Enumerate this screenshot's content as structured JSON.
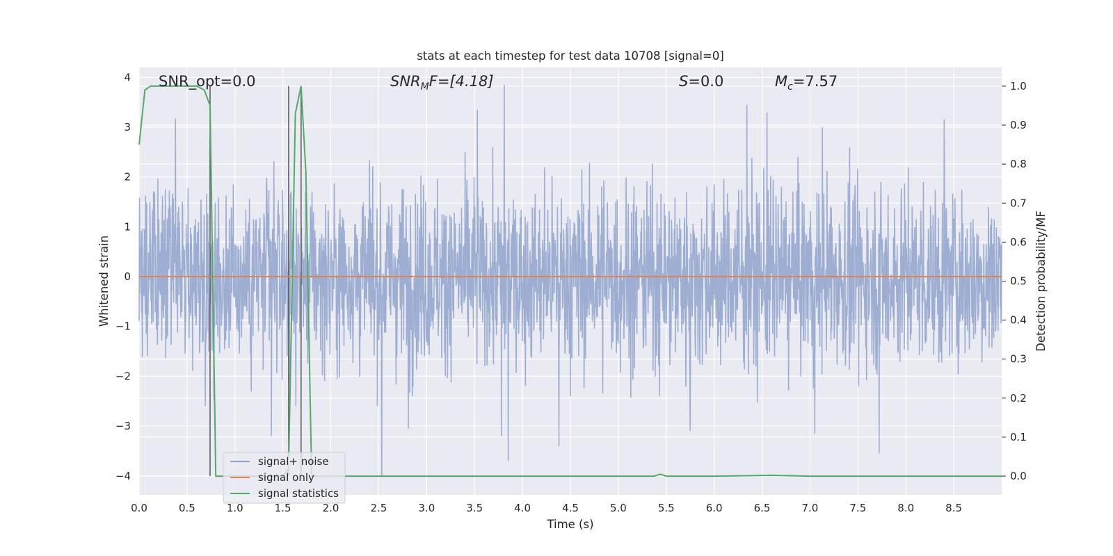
{
  "chart_data": {
    "type": "line",
    "title": "stats at each timestep for test data 10708 [signal=0]",
    "xlabel": "Time (s)",
    "ylabel": "Whitened strain",
    "ylabel_right": "Detection probability/MF",
    "xlim": [
      0.0,
      9.0
    ],
    "ylim": [
      -4.38,
      4.2
    ],
    "ylim_right": [
      -0.048,
      1.048
    ],
    "xticks": [
      "0.0",
      "0.5",
      "1.0",
      "1.5",
      "2.0",
      "2.5",
      "3.0",
      "3.5",
      "4.0",
      "4.5",
      "5.0",
      "5.5",
      "6.0",
      "6.5",
      "7.0",
      "7.5",
      "8.0",
      "8.5"
    ],
    "yticks": [
      "−4",
      "−3",
      "−2",
      "−1",
      "0",
      "1",
      "2",
      "3",
      "4"
    ],
    "yticks_right": [
      "0.0",
      "0.1",
      "0.2",
      "0.3",
      "0.4",
      "0.5",
      "0.6",
      "0.7",
      "0.8",
      "0.9",
      "1.0"
    ],
    "grid": true,
    "legend_position": "lower-left",
    "annotations": {
      "snr_opt": "SNR_opt=0.0",
      "snr_mf_main": "SNR",
      "snr_mf_sub": "M",
      "snr_mf_rest": "F=[4.18]",
      "s_main": "S",
      "s_rest": "=0.0",
      "mc_main": "M",
      "mc_sub": "c",
      "mc_rest": "=7.57"
    },
    "series": [
      {
        "name": "signal+ noise",
        "color": "#8fa3cc",
        "axis": "left",
        "description_noise": "whitened noise, roughly within [-2, 2.5] with sparse spikes",
        "spikes": [
          {
            "x": 3.81,
            "y": 3.85
          },
          {
            "x": 3.53,
            "y": 3.35
          },
          {
            "x": 6.34,
            "y": 3.45
          },
          {
            "x": 6.55,
            "y": 3.3
          },
          {
            "x": 0.38,
            "y": 3.17
          },
          {
            "x": 7.13,
            "y": 3.0
          },
          {
            "x": 8.4,
            "y": 3.15
          },
          {
            "x": 2.53,
            "y": -4.0
          },
          {
            "x": 3.85,
            "y": -3.7
          },
          {
            "x": 7.72,
            "y": -3.55
          },
          {
            "x": 4.38,
            "y": -3.4
          },
          {
            "x": 1.38,
            "y": -3.2
          },
          {
            "x": 5.75,
            "y": -3.1
          },
          {
            "x": 7.05,
            "y": -3.15
          },
          {
            "x": 2.81,
            "y": -3.05
          },
          {
            "x": 3.78,
            "y": -3.2
          }
        ]
      },
      {
        "name": "signal only",
        "color": "#dd8452",
        "axis": "left",
        "x": [
          0.0,
          9.0
        ],
        "y": [
          0.0,
          0.0
        ]
      },
      {
        "name": "signal statistics",
        "color": "#55a868",
        "axis": "right",
        "x": [
          0.0,
          0.06,
          0.12,
          0.2,
          0.3,
          0.4,
          0.5,
          0.6,
          0.68,
          0.74,
          0.8,
          0.9,
          1.0,
          1.5,
          1.56,
          1.63,
          1.69,
          1.74,
          1.8,
          2.0,
          3.0,
          4.0,
          5.0,
          5.37,
          5.44,
          5.5,
          6.0,
          6.6,
          7.0,
          8.0,
          9.0
        ],
        "y": [
          0.85,
          0.99,
          1.0,
          1.0,
          1.0,
          1.0,
          1.0,
          1.0,
          0.99,
          0.95,
          0.0,
          0.0,
          0.0,
          0.0,
          0.02,
          0.93,
          1.0,
          0.78,
          0.0,
          0.0,
          0.0,
          0.0,
          0.0,
          0.0,
          0.005,
          0.0,
          0.0,
          0.002,
          0.0,
          0.0,
          0.0
        ]
      }
    ],
    "vertical_lines": [
      {
        "x": 0.74,
        "range_right": [
          0.0,
          1.0
        ]
      },
      {
        "x": 1.56,
        "range_right": [
          0.0,
          1.0
        ]
      },
      {
        "x": 1.69,
        "range_right": [
          0.0,
          1.0
        ]
      }
    ]
  }
}
